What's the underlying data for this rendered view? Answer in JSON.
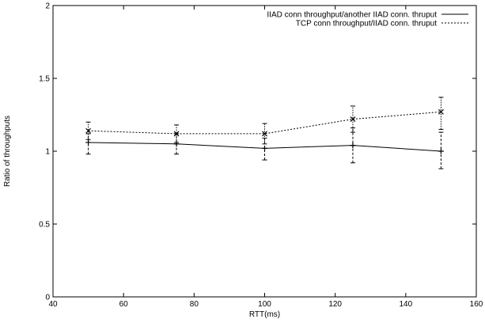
{
  "chart_data": {
    "type": "line",
    "xlabel": "RTT(ms)",
    "ylabel": "Ratio of throughputs",
    "xlim": [
      40,
      160
    ],
    "ylim": [
      0,
      2
    ],
    "xticks": [
      40,
      60,
      80,
      100,
      120,
      140,
      160
    ],
    "yticks": [
      0,
      0.5,
      1,
      1.5,
      2
    ],
    "xtick_labels": [
      "40",
      "60",
      "80",
      "100",
      "120",
      "140",
      "160"
    ],
    "ytick_labels": [
      "0",
      "0.5",
      "1",
      "1.5",
      "2"
    ],
    "legend_position": "top-right",
    "grid": false,
    "series": [
      {
        "name": "IIAD conn throughput/another IIAD conn. thruput",
        "style": "solid",
        "marker": "+",
        "x": [
          50,
          75,
          100,
          125,
          150
        ],
        "y": [
          1.06,
          1.05,
          1.02,
          1.04,
          1.0
        ],
        "err_low": [
          0.98,
          0.98,
          0.94,
          0.92,
          0.88
        ],
        "err_high": [
          1.12,
          1.12,
          1.09,
          1.16,
          1.13
        ]
      },
      {
        "name": "TCP conn throughput/IIAD conn. thruput",
        "style": "dotted",
        "marker": "x",
        "x": [
          50,
          75,
          100,
          125,
          150
        ],
        "y": [
          1.14,
          1.12,
          1.12,
          1.22,
          1.27
        ],
        "err_low": [
          1.08,
          1.06,
          1.05,
          1.13,
          1.15
        ],
        "err_high": [
          1.2,
          1.18,
          1.19,
          1.31,
          1.37
        ]
      }
    ]
  }
}
